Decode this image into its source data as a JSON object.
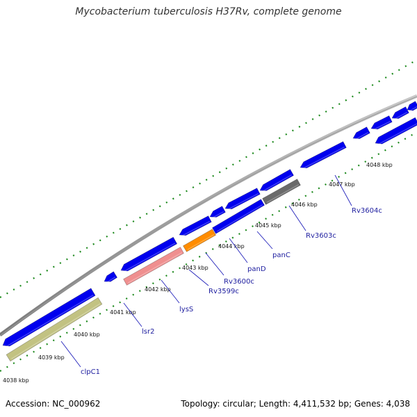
{
  "title": "Mycobacterium tuberculosis H37Rv, complete genome",
  "footer": {
    "accession": "Accession: NC_000962",
    "topology": "Topology: circular; Length: 4,411,532 bp; Genes: 4,038"
  },
  "colors": {
    "backbone": "#909090",
    "cds": "#0000ee",
    "clpC1": "#c2c282",
    "lysS": "#ef8f8f",
    "panD": "#ff8c00",
    "Rv3603c": "#6a6a6a",
    "tick": "#1e8a1e",
    "label_line": "#2222bb"
  },
  "scale_labels": [
    {
      "text": "4038 kbp"
    },
    {
      "text": "4039 kbp"
    },
    {
      "text": "4040 kbp"
    },
    {
      "text": "4041 kbp"
    },
    {
      "text": "4042 kbp"
    },
    {
      "text": "4043 kbp"
    },
    {
      "text": "4044 kbp"
    },
    {
      "text": "4045 kbp"
    },
    {
      "text": "4046 kbp"
    },
    {
      "text": "4047 kbp"
    },
    {
      "text": "4048 kbp"
    }
  ],
  "gene_labels": [
    {
      "text": "clpC1"
    },
    {
      "text": "lsr2"
    },
    {
      "text": "lysS"
    },
    {
      "text": "Rv3599c"
    },
    {
      "text": "Rv3600c"
    },
    {
      "text": "panD"
    },
    {
      "text": "panC"
    },
    {
      "text": "Rv3603c"
    },
    {
      "text": "Rv3604c"
    }
  ]
}
